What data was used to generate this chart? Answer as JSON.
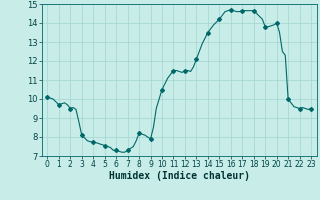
{
  "xlabel": "Humidex (Indice chaleur)",
  "bg_color": "#c8ece8",
  "grid_color": "#a8d8d4",
  "line_color": "#006868",
  "marker_color": "#006868",
  "xlim": [
    -0.5,
    23.5
  ],
  "ylim": [
    7,
    15
  ],
  "yticks": [
    7,
    8,
    9,
    10,
    11,
    12,
    13,
    14,
    15
  ],
  "xticks": [
    0,
    1,
    2,
    3,
    4,
    5,
    6,
    7,
    8,
    9,
    10,
    11,
    12,
    13,
    14,
    15,
    16,
    17,
    18,
    19,
    20,
    21,
    22,
    23
  ],
  "x": [
    0,
    0.25,
    0.5,
    0.75,
    1.0,
    1.25,
    1.5,
    1.75,
    2.0,
    2.25,
    2.5,
    2.75,
    3.0,
    3.25,
    3.5,
    3.75,
    4.0,
    4.25,
    4.5,
    4.75,
    5.0,
    5.25,
    5.5,
    5.75,
    6.0,
    6.25,
    6.5,
    6.75,
    7.0,
    7.25,
    7.5,
    7.75,
    8.0,
    8.25,
    8.5,
    8.75,
    9.0,
    9.25,
    9.5,
    9.75,
    10.0,
    10.25,
    10.5,
    10.75,
    11.0,
    11.25,
    11.5,
    11.75,
    12.0,
    12.25,
    12.5,
    12.75,
    13.0,
    13.25,
    13.5,
    13.75,
    14.0,
    14.25,
    14.5,
    14.75,
    15.0,
    15.25,
    15.5,
    15.75,
    16.0,
    16.25,
    16.5,
    16.75,
    17.0,
    17.25,
    17.5,
    17.75,
    18.0,
    18.25,
    18.5,
    18.75,
    19.0,
    19.25,
    19.5,
    19.75,
    20.0,
    20.25,
    20.5,
    20.75,
    21.0,
    21.25,
    21.5,
    21.75,
    22.0,
    22.25,
    22.5,
    22.75,
    23.0
  ],
  "y": [
    10.1,
    10.05,
    10.0,
    9.85,
    9.7,
    9.75,
    9.8,
    9.7,
    9.5,
    9.55,
    9.45,
    8.8,
    8.1,
    7.95,
    7.8,
    7.75,
    7.75,
    7.7,
    7.65,
    7.6,
    7.55,
    7.5,
    7.45,
    7.3,
    7.3,
    7.25,
    7.2,
    7.2,
    7.3,
    7.4,
    7.5,
    7.8,
    8.2,
    8.15,
    8.1,
    8.0,
    7.9,
    8.5,
    9.5,
    10.0,
    10.5,
    10.8,
    11.1,
    11.3,
    11.5,
    11.5,
    11.45,
    11.4,
    11.5,
    11.5,
    11.45,
    11.7,
    12.1,
    12.5,
    12.9,
    13.2,
    13.5,
    13.7,
    13.9,
    14.05,
    14.2,
    14.4,
    14.6,
    14.65,
    14.7,
    14.65,
    14.6,
    14.6,
    14.65,
    14.65,
    14.65,
    14.65,
    14.65,
    14.5,
    14.35,
    14.2,
    13.8,
    13.8,
    13.85,
    13.9,
    14.0,
    13.5,
    12.5,
    12.3,
    10.0,
    9.8,
    9.6,
    9.55,
    9.5,
    9.55,
    9.5,
    9.45,
    9.5
  ],
  "marker_x": [
    0,
    1,
    2,
    3,
    4,
    5,
    6,
    7,
    8,
    9,
    10,
    11,
    12,
    13,
    14,
    15,
    16,
    17,
    18,
    19,
    20,
    21,
    22,
    23
  ],
  "marker_y": [
    10.1,
    9.7,
    9.5,
    8.1,
    7.75,
    7.55,
    7.3,
    7.3,
    8.2,
    7.9,
    10.5,
    11.5,
    11.5,
    12.1,
    13.5,
    14.2,
    14.7,
    14.65,
    14.65,
    13.8,
    14.0,
    10.0,
    9.5,
    9.5
  ]
}
